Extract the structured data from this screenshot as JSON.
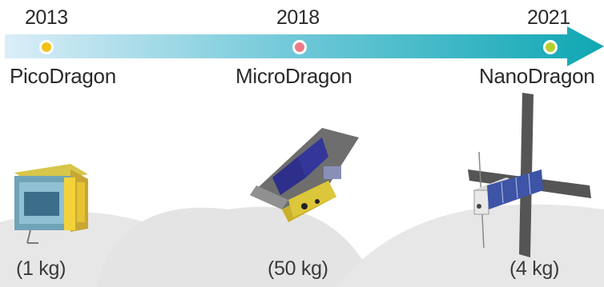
{
  "timeline": [
    {
      "year": "2013",
      "name": "PicoDragon",
      "mass": "(1 kg)",
      "dot_color": "#f2c21a"
    },
    {
      "year": "2018",
      "name": "MicroDragon",
      "mass": "(50 kg)",
      "dot_color": "#ef7a86"
    },
    {
      "year": "2021",
      "name": "NanoDragon",
      "mass": "(4 kg)",
      "dot_color": "#b7cf2e"
    }
  ],
  "colors": {
    "arrow_start": "#dbeef8",
    "arrow_end": "#0fa7b3",
    "background_shape": "#e7e7e7"
  }
}
